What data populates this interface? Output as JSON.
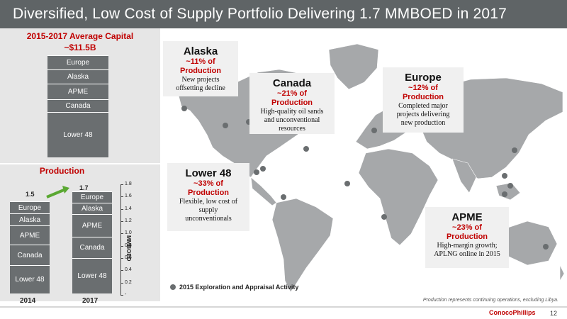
{
  "header": {
    "title": "Diversified, Low Cost of Supply Portfolio Delivering 1.7 MMBOED in 2017"
  },
  "capital": {
    "title": "2015-2017 Average Capital",
    "amount": "~$11.5B",
    "segments": [
      "Europe",
      "Alaska",
      "APME",
      "Canada",
      "Lower 48"
    ]
  },
  "production": {
    "title": "Production",
    "bars": [
      {
        "year": "2014",
        "total": "1.5",
        "segments": [
          "Europe",
          "Alaska",
          "APME",
          "Canada",
          "Lower 48"
        ]
      },
      {
        "year": "2017",
        "total": "1.7",
        "segments": [
          "Europe",
          "Alaska",
          "APME",
          "Canada",
          "Lower 48"
        ]
      }
    ],
    "axis_label": "MMBOED",
    "ticks": [
      "1.8",
      "1.6",
      "1.4",
      "1.2",
      "1.0",
      "0.8",
      "0.6",
      "0.4",
      "0.2",
      "-"
    ]
  },
  "callouts": {
    "alaska": {
      "name": "Alaska",
      "pct": "~11% of",
      "pct2": "Production",
      "desc": [
        "New projects",
        "offsetting decline"
      ]
    },
    "canada": {
      "name": "Canada",
      "pct": "~21% of",
      "pct2": "Production",
      "desc": [
        "High-quality oil sands",
        "and unconventional",
        "resources"
      ]
    },
    "europe": {
      "name": "Europe",
      "pct": "~12% of",
      "pct2": "Production",
      "desc": [
        "Completed major",
        "projects delivering",
        "new production"
      ]
    },
    "lower48": {
      "name": "Lower 48",
      "pct": "~33% of",
      "pct2": "Production",
      "desc": [
        "Flexible, low cost of",
        "supply",
        "unconventionals"
      ]
    },
    "apme": {
      "name": "APME",
      "pct": "~23% of",
      "pct2": "Production",
      "desc": [
        "High-margin growth;",
        "APLNG online in 2015"
      ]
    }
  },
  "legend": {
    "label": "2015 Exploration and Appraisal Activity"
  },
  "footer": {
    "note": "Production represents continuing operations, excluding Libya.",
    "logo": "ConocoPhillips",
    "page": "12"
  },
  "colors": {
    "header": "#5f6466",
    "accent": "#c00000",
    "segment": "#6a6e70",
    "panel": "#e6e6e6",
    "map": "#a6a8aa"
  }
}
